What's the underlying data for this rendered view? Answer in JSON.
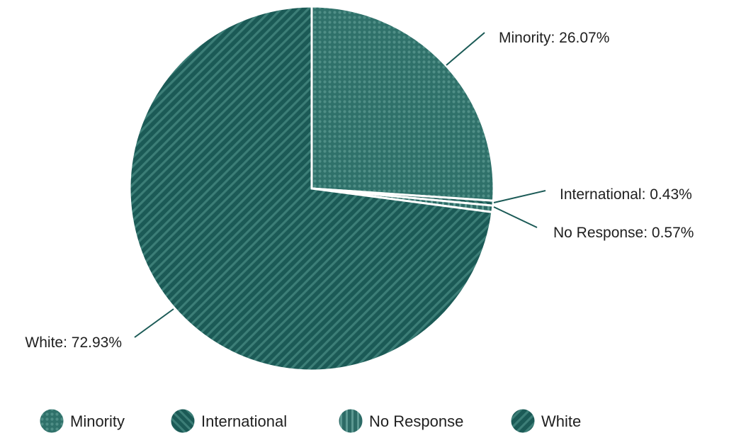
{
  "chart_data": {
    "type": "pie",
    "title": "",
    "slices": [
      {
        "label": "Minority",
        "value": 26.07,
        "data_label": "Minority: 26.07%",
        "color": "#35776f",
        "pattern": "dots"
      },
      {
        "label": "International",
        "value": 0.43,
        "data_label": "International: 0.43%",
        "color": "#1e5b57",
        "pattern": "diagonal-reverse"
      },
      {
        "label": "No Response",
        "value": 0.57,
        "data_label": "No Response: 0.57%",
        "color": "#2c6b66",
        "pattern": "vertical"
      },
      {
        "label": "White",
        "value": 72.93,
        "data_label": "White: 72.93%",
        "color": "#1b5a56",
        "pattern": "diagonal"
      }
    ],
    "start_angle_deg": 0,
    "direction": "clockwise",
    "legend": {
      "position": "bottom",
      "items": [
        "Minority",
        "International",
        "No Response",
        "White"
      ]
    }
  }
}
